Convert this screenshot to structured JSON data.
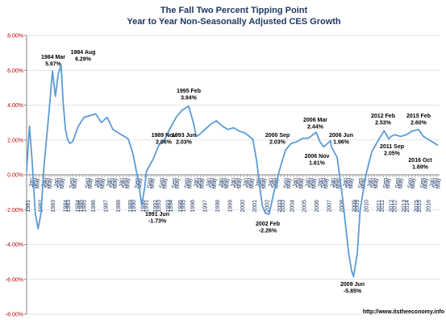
{
  "chart_data": {
    "type": "line",
    "title": "The Fall Two Percent Tipping Point",
    "subtitle": "Year to Year Non-Seasonally Adjusted CES Growth",
    "source": "http://www.itstheeconomy.info",
    "ylim": [
      -8,
      8
    ],
    "yticks": [
      "8.00%",
      "6.00%",
      "4.00%",
      "2.00%",
      "0.00%",
      "-2.00%",
      "-4.00%",
      "-6.00%",
      "-8.00%"
    ],
    "grid": true,
    "legend": "none",
    "line_color": "#5b9bd5",
    "series": [
      {
        "x": [
          1981.0,
          1981.25,
          1981.5,
          1981.75,
          1982.0,
          1982.25,
          1982.5,
          1982.75,
          1983.0,
          1983.25,
          1983.5,
          1983.75,
          1984.0,
          1984.17,
          1984.38,
          1984.58,
          1984.75,
          1985.0,
          1985.5,
          1986.0,
          1986.5,
          1987.0,
          1987.5,
          1988.0,
          1988.5,
          1989.0,
          1989.5,
          1989.83,
          1990.25,
          1990.75,
          1991.0,
          1991.25,
          1991.42,
          1991.75,
          1992.0,
          1992.5,
          1993.0,
          1993.42,
          1993.75,
          1994.0,
          1994.5,
          1995.08,
          1995.5,
          1995.75,
          1996.0,
          1996.5,
          1997.0,
          1997.5,
          1998.0,
          1998.5,
          1999.0,
          1999.5,
          2000.0,
          2000.67,
          2001.0,
          2001.25,
          2001.5,
          2001.75,
          2002.08,
          2002.5,
          2003.0,
          2003.5,
          2004.0,
          2004.5,
          2005.0,
          2005.5,
          2006.17,
          2006.5,
          2006.83,
          2007.0,
          2007.42,
          2007.5,
          2008.0,
          2008.5,
          2009.0,
          2009.25,
          2009.42,
          2009.75,
          2010.0,
          2010.5,
          2011.0,
          2011.5,
          2012.08,
          2012.5,
          2012.67,
          2013.0,
          2013.5,
          2014.0,
          2014.5,
          2015.08,
          2015.5,
          2016.0,
          2016.5,
          2016.75
        ],
        "values": [
          0.2,
          2.8,
          0.6,
          -2.2,
          -3.1,
          -2.2,
          0.4,
          2.2,
          4.0,
          5.97,
          4.5,
          5.8,
          6.29,
          4.2,
          2.6,
          2.0,
          1.8,
          1.9,
          2.8,
          3.3,
          3.4,
          3.5,
          3.0,
          3.3,
          2.6,
          2.4,
          2.2,
          2.06,
          1.2,
          -0.5,
          -1.73,
          -0.8,
          0.2,
          0.6,
          0.9,
          1.7,
          2.03,
          2.6,
          3.0,
          3.3,
          3.7,
          3.94,
          3.0,
          2.2,
          2.3,
          2.6,
          2.9,
          3.1,
          2.8,
          2.6,
          2.7,
          2.5,
          2.4,
          2.03,
          0.8,
          -0.6,
          -1.8,
          -2.2,
          -2.26,
          -1.0,
          0.3,
          1.4,
          1.8,
          1.9,
          2.1,
          2.1,
          2.44,
          1.9,
          1.61,
          1.7,
          1.96,
          1.6,
          1.0,
          -1.5,
          -4.5,
          -5.5,
          -5.85,
          -4.5,
          -2.0,
          0.0,
          1.3,
          1.9,
          2.53,
          2.05,
          2.2,
          2.3,
          2.2,
          2.3,
          2.5,
          2.6,
          2.2,
          2.0,
          1.8,
          1.69
        ]
      }
    ],
    "xticks": [
      "1981",
      "Jan",
      "Sep",
      "May",
      "1982",
      "Jan",
      "Sep",
      "May",
      "1983",
      "Jan",
      "Sep",
      "May",
      "1984",
      "1983",
      "Sep",
      "May",
      "1984",
      "1985",
      "1985",
      "Sep",
      "May",
      "1986",
      "Jan",
      "Sep",
      "May",
      "1987",
      "Jan",
      "Sep",
      "May",
      "1988",
      "Jan",
      "Sep",
      "May",
      "1989",
      "1990",
      "Sep",
      "May",
      "1990",
      "1991",
      "Sep",
      "May",
      "1992",
      "1993",
      "Sep",
      "May",
      "1993",
      "1994",
      "Sep",
      "May",
      "1995",
      "1995",
      "Sep",
      "May",
      "1996",
      "Jan",
      "Sep",
      "May",
      "1997",
      "Jan",
      "Sep",
      "May",
      "1998",
      "Jan",
      "Sep",
      "May",
      "1999",
      "Jan",
      "Sep",
      "May",
      "2000",
      "Jan",
      "Sep",
      "May",
      "2001",
      "Jan",
      "Sep",
      "May",
      "2002",
      "Jan",
      "Sep",
      "May",
      "2003",
      "2003",
      "Sep",
      "May",
      "2004",
      "Jan",
      "Sep",
      "May",
      "2005",
      "Jan",
      "Sep",
      "May",
      "2006",
      "Jan",
      "Sep",
      "May",
      "2007",
      "Jan",
      "Sep",
      "May",
      "2008",
      "Jan",
      "Sep",
      "May",
      "2009",
      "2009",
      "Sep",
      "May",
      "2010",
      "Jan",
      "Sep",
      "May",
      "2011",
      "2011",
      "Sep",
      "May",
      "2012",
      "2012",
      "Sep",
      "May",
      "2013",
      "2014",
      "Sep",
      "May",
      "2015",
      "2015",
      "Sep",
      "May",
      "2016",
      "Jan",
      "Sep",
      "May"
    ],
    "annotations": [
      {
        "id": "1984mar",
        "line1": "1984 Mar",
        "line2": "5.97%"
      },
      {
        "id": "1984aug",
        "line1": "1984 Aug",
        "line2": "6.29%"
      },
      {
        "id": "1989nov",
        "line1": "1989 Nov",
        "line2": "2.06%"
      },
      {
        "id": "1991jun",
        "line1": "1991 Jun",
        "line2": "-1.73%"
      },
      {
        "id": "1993jun",
        "line1": "1993 Jun",
        "line2": "2.03%"
      },
      {
        "id": "1995feb",
        "line1": "1995 Feb",
        "line2": "3.94%"
      },
      {
        "id": "2000sep",
        "line1": "2000 Sep",
        "line2": "2.03%"
      },
      {
        "id": "2002feb",
        "line1": "2002 Feb",
        "line2": "-2.26%"
      },
      {
        "id": "2006mar",
        "line1": "2006 Mar",
        "line2": "2.44%"
      },
      {
        "id": "2006nov",
        "line1": "2006 Nov",
        "line2": "1.61%"
      },
      {
        "id": "2006jun",
        "line1": "2006 Jun",
        "line2": "1.96%"
      },
      {
        "id": "2009jun",
        "line1": "2009 Jun",
        "line2": "-5.85%"
      },
      {
        "id": "2012feb",
        "line1": "2012 Feb",
        "line2": "2.53%"
      },
      {
        "id": "2011sep",
        "line1": "2011 Sep",
        "line2": "2.05%"
      },
      {
        "id": "2015feb",
        "line1": "2015 Feb",
        "line2": "2.60%"
      },
      {
        "id": "2016oct",
        "line1": "2016 Oct",
        "line2": "1.69%"
      }
    ]
  }
}
